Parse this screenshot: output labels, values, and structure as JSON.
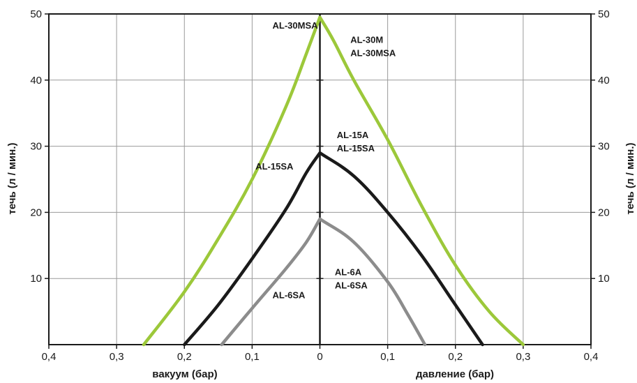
{
  "chart_data": {
    "type": "line",
    "xlabel_left": "вакуум (бар)",
    "xlabel_right": "давление (бар)",
    "ylabel_left": "течь (л / мин.)",
    "ylabel_right": "течь (л / мин.)",
    "xlim": [
      -0.4,
      0.4
    ],
    "ylim": [
      0,
      50
    ],
    "x_ticks": [
      {
        "value": -0.4,
        "label": "0,4"
      },
      {
        "value": -0.3,
        "label": "0,3"
      },
      {
        "value": -0.2,
        "label": "0,2"
      },
      {
        "value": -0.1,
        "label": "0,1"
      },
      {
        "value": 0,
        "label": "0"
      },
      {
        "value": 0.1,
        "label": "0,1"
      },
      {
        "value": 0.2,
        "label": "0,2"
      },
      {
        "value": 0.3,
        "label": "0,3"
      },
      {
        "value": 0.4,
        "label": "0,4"
      }
    ],
    "y_ticks_left": [
      {
        "value": 10,
        "label": "10"
      },
      {
        "value": 20,
        "label": "20"
      },
      {
        "value": 30,
        "label": "30"
      },
      {
        "value": 40,
        "label": "40"
      },
      {
        "value": 50,
        "label": "50"
      }
    ],
    "y_ticks_right": [
      {
        "value": 10,
        "label": "10"
      },
      {
        "value": 20,
        "label": "20"
      },
      {
        "value": 30,
        "label": "30"
      },
      {
        "value": 40,
        "label": "40"
      },
      {
        "value": 50,
        "label": "50"
      }
    ],
    "grid": true,
    "series": [
      {
        "color": "#9cc83a",
        "points": [
          [
            -0.26,
            0
          ],
          [
            -0.2,
            8
          ],
          [
            -0.15,
            16
          ],
          [
            -0.1,
            25
          ],
          [
            -0.05,
            36
          ],
          [
            -0.02,
            44
          ],
          [
            0,
            49.5
          ],
          [
            0.02,
            46
          ],
          [
            0.05,
            40
          ],
          [
            0.1,
            31
          ],
          [
            0.15,
            21
          ],
          [
            0.2,
            12
          ],
          [
            0.25,
            5
          ],
          [
            0.3,
            0
          ]
        ]
      },
      {
        "color": "#1a1a1a",
        "points": [
          [
            -0.2,
            0
          ],
          [
            -0.15,
            6
          ],
          [
            -0.1,
            13
          ],
          [
            -0.05,
            20.5
          ],
          [
            -0.02,
            26
          ],
          [
            0,
            29
          ],
          [
            0.05,
            25.5
          ],
          [
            0.1,
            20
          ],
          [
            0.15,
            13.5
          ],
          [
            0.2,
            6
          ],
          [
            0.24,
            0
          ]
        ]
      },
      {
        "color": "#8c8c8c",
        "points": [
          [
            -0.145,
            0
          ],
          [
            -0.1,
            5.5
          ],
          [
            -0.05,
            11.5
          ],
          [
            -0.02,
            15.5
          ],
          [
            0,
            19
          ],
          [
            0.05,
            15.5
          ],
          [
            0.1,
            9.5
          ],
          [
            0.13,
            4.5
          ],
          [
            0.155,
            0
          ]
        ]
      }
    ],
    "annotations": [
      {
        "text": "AL-30MSA",
        "x": -0.07,
        "y": 47.8
      },
      {
        "text": "AL-30M",
        "x": 0.045,
        "y": 45.6
      },
      {
        "text": "AL-30MSA",
        "x": 0.045,
        "y": 43.6
      },
      {
        "text": "AL-15A",
        "x": 0.025,
        "y": 31.2
      },
      {
        "text": "AL-15SA",
        "x": 0.025,
        "y": 29.2
      },
      {
        "text": "AL-15SA",
        "x": -0.095,
        "y": 26.5
      },
      {
        "text": "AL-6A",
        "x": 0.022,
        "y": 10.5
      },
      {
        "text": "AL-6SA",
        "x": 0.022,
        "y": 8.5
      },
      {
        "text": "AL-6SA",
        "x": -0.07,
        "y": 7
      }
    ]
  }
}
